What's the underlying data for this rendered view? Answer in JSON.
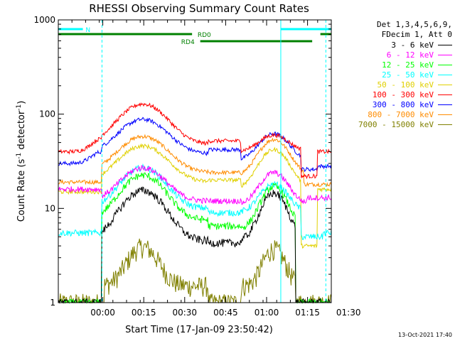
{
  "chart_data": {
    "type": "line",
    "title": "RHESSI Observing Summary Count Rates",
    "xlabel": "Start Time (17-Jan-09 23:50:42)",
    "ylabel_main": "Count Rate (s",
    "ylabel_sup1": "-1",
    "ylabel_mid": " detector",
    "ylabel_sup2": "-1",
    "ylabel_end": ")",
    "y_scale": "log",
    "ylim": [
      1,
      1000
    ],
    "xlim_minutes": [
      -7,
      93
    ],
    "x_ticks": [
      {
        "label": "00:00",
        "minute": 9.3
      },
      {
        "label": "00:15",
        "minute": 24.3
      },
      {
        "label": "00:30",
        "minute": 39.3
      },
      {
        "label": "00:45",
        "minute": 54.3
      },
      {
        "label": "01:00",
        "minute": 69.3
      },
      {
        "label": "01:15",
        "minute": 84.3
      },
      {
        "label": "01:30",
        "minute": 99.3
      }
    ],
    "y_ticks": [
      {
        "label": "1",
        "value": 1
      },
      {
        "label": "10",
        "value": 10
      },
      {
        "label": "100",
        "value": 100
      },
      {
        "label": "1000",
        "value": 1000
      }
    ],
    "legend_header": [
      "Det 1,3,4,5,6,9,",
      "FDecim 1, Att 0"
    ],
    "series": [
      {
        "name": "3 - 6 keV",
        "color": "#000000",
        "key": "k"
      },
      {
        "name": "6 - 12 keV",
        "color": "#ff00ff",
        "key": "m"
      },
      {
        "name": "12 - 25 keV",
        "color": "#00ff00",
        "key": "g"
      },
      {
        "name": "25 - 50 keV",
        "color": "#00ffff",
        "key": "c"
      },
      {
        "name": "50 - 100 keV",
        "color": "#e0d000",
        "key": "y"
      },
      {
        "name": "100 - 300 keV",
        "color": "#ff0000",
        "key": "r"
      },
      {
        "name": "300 - 800 keV",
        "color": "#0000ff",
        "key": "b"
      },
      {
        "name": "800 - 7000 keV",
        "color": "#ff8c00",
        "key": "o"
      },
      {
        "name": "7000 - 15000 keV",
        "color": "#808000",
        "key": "ol"
      }
    ],
    "flags": [
      {
        "label": "N",
        "color": "#00ffff",
        "segments": [
          [
            -7,
            2
          ],
          [
            74.5,
            93
          ]
        ]
      },
      {
        "label": "RD0",
        "color": "#008000",
        "segments": [
          [
            -7,
            42
          ],
          [
            89,
            93
          ]
        ]
      },
      {
        "label": "RD4",
        "color": "#008000",
        "segments": [
          [
            45,
            86
          ]
        ]
      }
    ],
    "vlines_dashed": [
      9,
      91
    ],
    "vlines_solid": [
      -7,
      74.5
    ],
    "timestamp": "13-Oct-2021 17:40"
  }
}
